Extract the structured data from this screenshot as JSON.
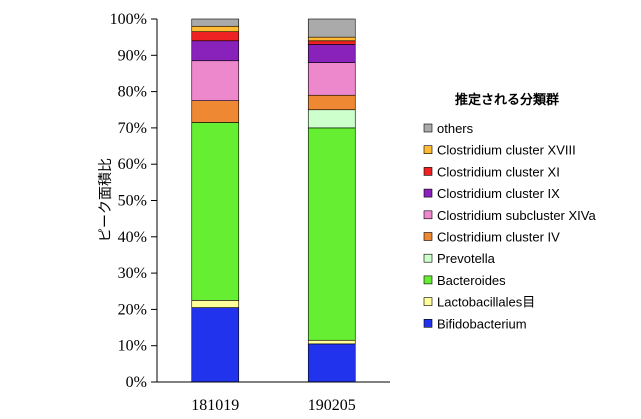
{
  "chart_data": {
    "type": "bar",
    "stacked": true,
    "percent": true,
    "categories": [
      "181019",
      "190205"
    ],
    "ylabel": "ピーク面積比",
    "ylim": [
      0,
      100
    ],
    "ytick_labels": [
      "0%",
      "10%",
      "20%",
      "30%",
      "40%",
      "50%",
      "60%",
      "70%",
      "80%",
      "90%",
      "100%"
    ],
    "legend_title": "推定される分類群",
    "legend_position": "right",
    "grid": false,
    "series": [
      {
        "name": "Bifidobacterium",
        "color": "#2233ee",
        "values": [
          20.5,
          10.5
        ]
      },
      {
        "name": "Lactobacillales目",
        "color": "#ffff99",
        "values": [
          2.0,
          1.0
        ]
      },
      {
        "name": "Bacteroides",
        "color": "#66ee33",
        "values": [
          49.0,
          58.5
        ]
      },
      {
        "name": "Prevotella",
        "color": "#ccffcc",
        "values": [
          0.0,
          5.0
        ]
      },
      {
        "name": "Clostridium cluster IV",
        "color": "#ee8833",
        "values": [
          6.0,
          4.0
        ]
      },
      {
        "name": "Clostridium subcluster XIVa",
        "color": "#ee88cc",
        "values": [
          11.0,
          9.0
        ]
      },
      {
        "name": "Clostridium cluster IX",
        "color": "#8822bb",
        "values": [
          5.5,
          5.0
        ]
      },
      {
        "name": "Clostridium cluster XI",
        "color": "#ee2222",
        "values": [
          2.5,
          1.0
        ]
      },
      {
        "name": "Clostridium cluster XVIII",
        "color": "#ffbb33",
        "values": [
          1.5,
          1.0
        ]
      },
      {
        "name": "others",
        "color": "#aaaaaa",
        "values": [
          2.0,
          5.0
        ]
      }
    ]
  }
}
